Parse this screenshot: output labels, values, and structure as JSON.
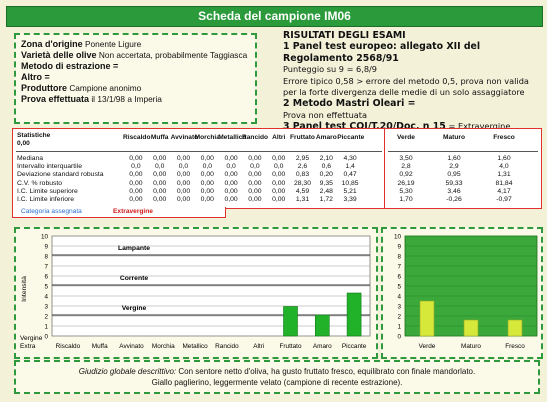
{
  "title": "Scheda del campione IM06",
  "info": {
    "zona_label": "Zona d'origine",
    "zona_value": "Ponente Ligure",
    "varieta_label": "Varietà delle olive",
    "varieta_value": "Non accertata, probabilmente Taggiasca",
    "metodo_label": "Metodo di estrazione =",
    "altro_label": "Altro =",
    "produttore_label": "Produttore",
    "produttore_value": "Campione anonimo",
    "prova_label": "Prova effettuata",
    "prova_value": "il 13/1/98 a Imperia"
  },
  "results": {
    "heading": "RISULTATI DEGLI ESAMI",
    "panel1": "1 Panel test europeo: allegato XII del Regolamento 2568/91",
    "punteggio": "Punteggio su 9 = 6,8/9",
    "errore": "Errore tipico 0,58 > errore del metodo 0,5, prova non valida per la forte divergenza delle medie di un solo assaggiatore",
    "metodo2": "2 Metodo Mastri Oleari =",
    "prova_non": "Prova non effettuata",
    "panel3": "3 Panel test COI/T.20/Doc. n 15",
    "panel3_value": "= Extravergine"
  },
  "stats": {
    "corner_label": "Statistiche",
    "corner_value": "0,00",
    "columns": [
      "Riscaldo",
      "Muffa",
      "Avvinato",
      "Morchia",
      "Metallico",
      "Rancido",
      "Altri",
      "Fruttato",
      "Amaro",
      "Piccante"
    ],
    "rows": [
      {
        "label": "Mediana",
        "values": [
          "0,00",
          "0,00",
          "0,00",
          "0,00",
          "0,00",
          "0,00",
          "0,00",
          "2,95",
          "2,10",
          "4,30"
        ]
      },
      {
        "label": "Intervallo interquartile",
        "values": [
          "0,0",
          "0,0",
          "0,0",
          "0,0",
          "0,0",
          "0,0",
          "0,0",
          "2,6",
          "0,6",
          "1,4"
        ]
      },
      {
        "label": "Deviazione standard robusta",
        "values": [
          "0,00",
          "0,00",
          "0,00",
          "0,00",
          "0,00",
          "0,00",
          "0,00",
          "0,83",
          "0,20",
          "0,47"
        ]
      },
      {
        "label": "C.V. % robusto",
        "values": [
          "0,00",
          "0,00",
          "0,00",
          "0,00",
          "0,00",
          "0,00",
          "0,00",
          "28,30",
          "9,35",
          "10,85"
        ]
      },
      {
        "label": "I.C. Limite superiore",
        "values": [
          "0,00",
          "0,00",
          "0,00",
          "0,00",
          "0,00",
          "0,00",
          "0,00",
          "4,59",
          "2,48",
          "5,21"
        ]
      },
      {
        "label": "I.C. Limite inferiore",
        "values": [
          "0,00",
          "0,00",
          "0,00",
          "0,00",
          "0,00",
          "0,00",
          "0,00",
          "1,31",
          "1,72",
          "3,39"
        ]
      }
    ],
    "category_label": "Categoria assegnata",
    "category_value": "Extravergine"
  },
  "stats2": {
    "columns": [
      "Verde",
      "Maturo",
      "Fresco"
    ],
    "rows": [
      [
        "3,50",
        "1,60",
        "1,60"
      ],
      [
        "2,8",
        "2,9",
        "4,0"
      ],
      [
        "0,92",
        "0,95",
        "1,31"
      ],
      [
        "26,19",
        "59,33",
        "81,84"
      ],
      [
        "5,30",
        "3,46",
        "4,17"
      ],
      [
        "1,70",
        "-0,26",
        "-0,97"
      ]
    ]
  },
  "chart_data": [
    {
      "type": "bar",
      "categories": [
        "Riscaldo",
        "Muffa",
        "Avvinato",
        "Morchia",
        "Metallico",
        "Rancido",
        "Altri",
        "Fruttato",
        "Amaro",
        "Piccante"
      ],
      "values": [
        0,
        0,
        0,
        0,
        0,
        0,
        0,
        2.95,
        2.1,
        4.3
      ],
      "ylim": [
        0,
        10
      ],
      "yticks": [
        "0",
        "1",
        "2",
        "3",
        "4",
        "5",
        "6",
        "7",
        "8",
        "9",
        "10"
      ],
      "ylabel": "Intensità",
      "bottom_labels": [
        "Vergine",
        "Extra"
      ],
      "zone_labels": [
        "Lampante",
        "Corrente",
        "Vergine"
      ],
      "colors": {
        "bar": "#22b22a",
        "line": "#1e1e1e"
      }
    },
    {
      "type": "bar",
      "categories": [
        "Verde",
        "Maturo",
        "Fresco"
      ],
      "values": [
        3.5,
        1.6,
        1.6
      ],
      "ylim": [
        0,
        10
      ],
      "yticks": [
        "0",
        "1",
        "2",
        "3",
        "4",
        "5",
        "6",
        "7",
        "8",
        "9",
        "10"
      ],
      "colors": {
        "bar": "#d6e83a",
        "background": "#3aa83a"
      }
    }
  ],
  "judgment": {
    "label": "Giudizio globale descrittivo:",
    "text1": "Con sentore netto d'oliva, ha gusto fruttato fresco, equilibrato con finale mandorlato.",
    "text2": "Giallo paglierino, leggermente velato (campione di recente estrazione)."
  }
}
